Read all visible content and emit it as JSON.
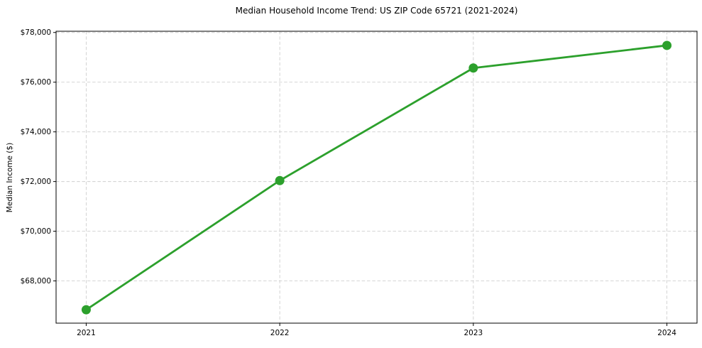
{
  "chart_data": {
    "type": "line",
    "title": "Median Household Income Trend: US ZIP Code 65721 (2021-2024)",
    "xlabel": "",
    "ylabel": "Median Income ($)",
    "x": [
      "2021",
      "2022",
      "2023",
      "2024"
    ],
    "series": [
      {
        "values": [
          66840,
          72040,
          76570,
          77480
        ],
        "color": "#2ca02c",
        "marker": "circle"
      }
    ],
    "ylim": [
      66300,
      78050
    ],
    "yticks": [
      68000,
      70000,
      72000,
      74000,
      76000,
      78000
    ],
    "ytick_labels": [
      "$68,000",
      "$70,000",
      "$72,000",
      "$74,000",
      "$76,000",
      "$78,000"
    ],
    "grid": true,
    "grid_style": "dashed",
    "grid_color": "#cfcfcf",
    "frame_color": "#000000",
    "background": "#ffffff",
    "legend": "none"
  }
}
